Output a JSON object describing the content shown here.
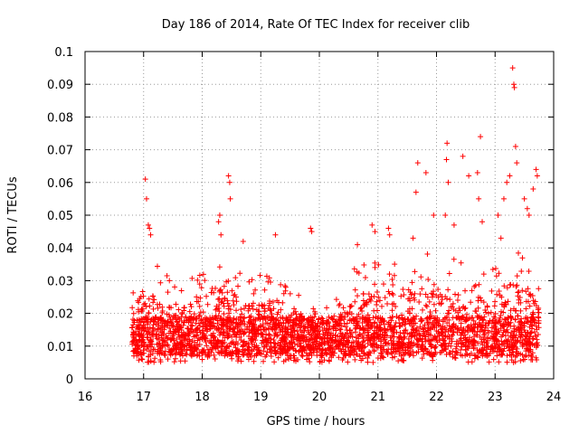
{
  "chart_data": {
    "type": "scatter",
    "title": "Day 186 of 2014, Rate Of TEC Index for receiver clib",
    "xlabel": "GPS time / hours",
    "ylabel": "ROTI / TECUs",
    "xlim": [
      16,
      24
    ],
    "ylim": [
      0,
      0.1
    ],
    "xticks": [
      "16",
      "17",
      "18",
      "19",
      "20",
      "21",
      "22",
      "23",
      "24"
    ],
    "yticks": [
      "0",
      "0.01",
      "0.02",
      "0.03",
      "0.04",
      "0.05",
      "0.06",
      "0.07",
      "0.08",
      "0.09",
      "0.1"
    ],
    "grid": true,
    "marker": "+",
    "series_color": "#ff0000",
    "x_range_of_data": [
      16.8,
      23.75
    ],
    "typical_band": [
      0.005,
      0.03
    ],
    "notable_points": [
      {
        "x": 17.03,
        "y": 0.061
      },
      {
        "x": 17.05,
        "y": 0.055
      },
      {
        "x": 17.08,
        "y": 0.047
      },
      {
        "x": 17.1,
        "y": 0.046
      },
      {
        "x": 17.12,
        "y": 0.044
      },
      {
        "x": 18.28,
        "y": 0.048
      },
      {
        "x": 18.3,
        "y": 0.05
      },
      {
        "x": 18.32,
        "y": 0.044
      },
      {
        "x": 18.45,
        "y": 0.062
      },
      {
        "x": 18.47,
        "y": 0.06
      },
      {
        "x": 18.48,
        "y": 0.055
      },
      {
        "x": 18.7,
        "y": 0.042
      },
      {
        "x": 19.25,
        "y": 0.044
      },
      {
        "x": 19.85,
        "y": 0.046
      },
      {
        "x": 19.87,
        "y": 0.045
      },
      {
        "x": 20.65,
        "y": 0.041
      },
      {
        "x": 20.9,
        "y": 0.047
      },
      {
        "x": 20.95,
        "y": 0.045
      },
      {
        "x": 21.2,
        "y": 0.044
      },
      {
        "x": 21.18,
        "y": 0.046
      },
      {
        "x": 21.6,
        "y": 0.043
      },
      {
        "x": 21.65,
        "y": 0.057
      },
      {
        "x": 21.68,
        "y": 0.066
      },
      {
        "x": 21.82,
        "y": 0.063
      },
      {
        "x": 21.95,
        "y": 0.05
      },
      {
        "x": 22.15,
        "y": 0.05
      },
      {
        "x": 22.17,
        "y": 0.067
      },
      {
        "x": 22.18,
        "y": 0.072
      },
      {
        "x": 22.2,
        "y": 0.06
      },
      {
        "x": 22.3,
        "y": 0.047
      },
      {
        "x": 22.45,
        "y": 0.068
      },
      {
        "x": 22.55,
        "y": 0.062
      },
      {
        "x": 22.7,
        "y": 0.063
      },
      {
        "x": 22.72,
        "y": 0.055
      },
      {
        "x": 22.75,
        "y": 0.074
      },
      {
        "x": 22.78,
        "y": 0.048
      },
      {
        "x": 23.05,
        "y": 0.05
      },
      {
        "x": 23.1,
        "y": 0.043
      },
      {
        "x": 23.15,
        "y": 0.055
      },
      {
        "x": 23.2,
        "y": 0.06
      },
      {
        "x": 23.25,
        "y": 0.062
      },
      {
        "x": 23.3,
        "y": 0.095
      },
      {
        "x": 23.32,
        "y": 0.09
      },
      {
        "x": 23.33,
        "y": 0.089
      },
      {
        "x": 23.35,
        "y": 0.071
      },
      {
        "x": 23.37,
        "y": 0.066
      },
      {
        "x": 23.5,
        "y": 0.055
      },
      {
        "x": 23.55,
        "y": 0.052
      },
      {
        "x": 23.58,
        "y": 0.05
      },
      {
        "x": 23.65,
        "y": 0.058
      },
      {
        "x": 23.7,
        "y": 0.064
      },
      {
        "x": 23.72,
        "y": 0.062
      }
    ]
  }
}
